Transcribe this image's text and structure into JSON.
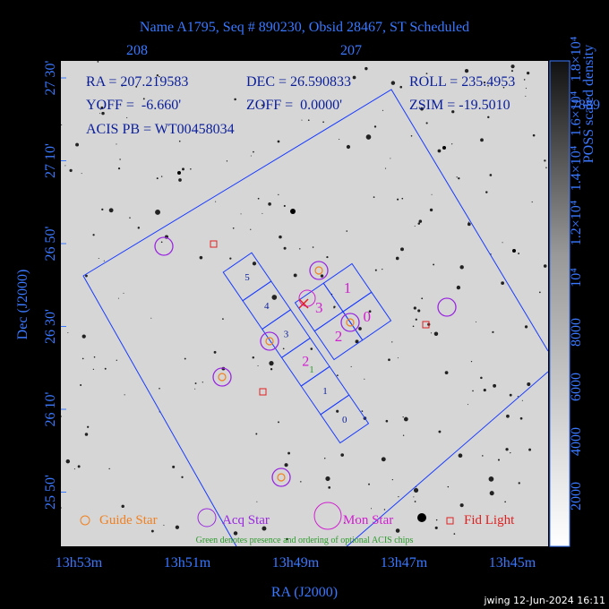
{
  "header": {
    "title": "Name A1795, Seq # 890230, Obsid 28467, ST Scheduled"
  },
  "info": {
    "ra": "RA = 207.219583",
    "dec": "DEC = 26.590833",
    "roll": "ROLL = 235.4953",
    "yoff": "YOFF =  -6.660'",
    "zoff": "ZOFF =  0.0000'",
    "zsim": "ZSIM = -19.5010",
    "acis": "ACIS PB = WT00458034",
    "clipped": "7889"
  },
  "top_axis": [
    "208",
    "207"
  ],
  "left_axis": [
    "27 30'",
    "27 10'",
    "26 50'",
    "26 30'",
    "26 10'",
    "25 50'"
  ],
  "bottom_axis": [
    "13h53m",
    "13h51m",
    "13h49m",
    "13h47m",
    "13h45m"
  ],
  "x_label": "RA (J2000)",
  "y_label": "Dec (J2000)",
  "colorbar": {
    "label": "POSS scaled density",
    "ticks": [
      "2000",
      "4000",
      "6000",
      "8000",
      "10⁴",
      "1.2×10⁴",
      "1.4×10⁴",
      "1.6×10⁴",
      "1.8×10⁴"
    ]
  },
  "legend": [
    "Guide Star",
    "Acq Star",
    "Mon Star",
    "Fid Light"
  ],
  "note": "Green denotes presence and ordering of optional ACIS chips",
  "acis_s": [
    "5",
    "4",
    "3",
    "2",
    "1",
    "0"
  ],
  "acis_i": [
    "1",
    "0",
    "3",
    "2"
  ],
  "optional": "1",
  "footer": "jwing 12-Jun-2024 16:11"
}
